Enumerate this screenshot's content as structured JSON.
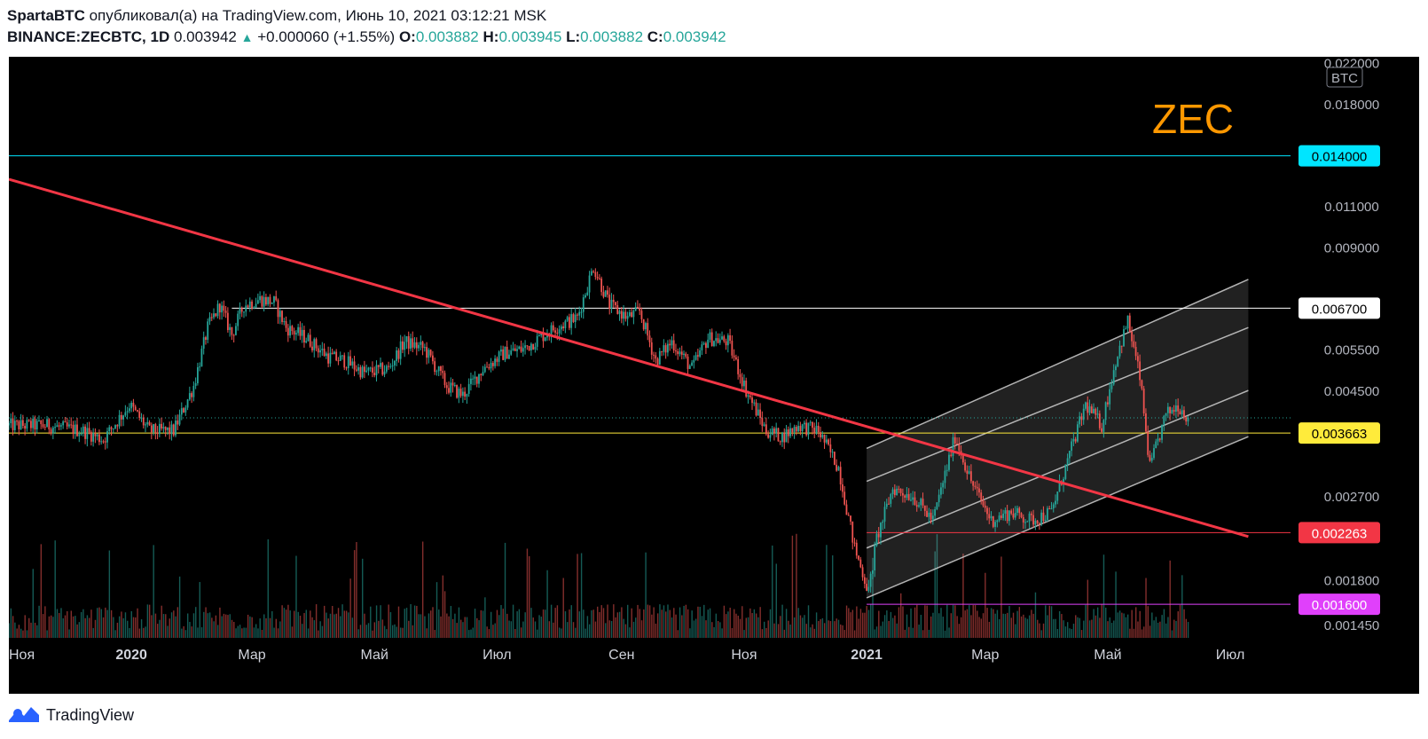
{
  "header": {
    "author": "SpartaBTC",
    "published_text": "опубликовал(а) на TradingView.com, Июнь 10, 2021 03:12:21 MSK",
    "symbol": "BINANCE:ZECBTC, 1D",
    "price": "0.003942",
    "change": "+0.000060 (+1.55%)",
    "o_label": "O:",
    "o_value": "0.003882",
    "h_label": "H:",
    "h_value": "0.003945",
    "l_label": "L:",
    "l_value": "0.003882",
    "c_label": "C:",
    "c_value": "0.003942"
  },
  "watermark": "ZEC",
  "currency": "BTC",
  "footer": {
    "brand": "TradingView"
  },
  "colors": {
    "candle_up": "#26a69a",
    "candle_down": "#ef5350",
    "trendline": "#f23645",
    "level_cyan": "#00e5ff",
    "level_yellow": "#ffeb3b",
    "level_magenta": "#e040fb",
    "watermark": "#ff9800"
  },
  "chart_data": {
    "type": "candlestick",
    "y_axis": {
      "scale": "log",
      "ylim": [
        0.00136,
        0.0226
      ],
      "ticks": [
        "0.022000",
        "0.018000",
        "0.011000",
        "0.009000",
        "0.005500",
        "0.004500",
        "0.002700",
        "0.001800",
        "0.001450"
      ]
    },
    "x_axis": {
      "range": [
        "2019-11-01",
        "2021-07-31"
      ],
      "ticks": [
        {
          "label": "Ноя",
          "date": "2019-11-01"
        },
        {
          "label": "2020",
          "date": "2020-01-01"
        },
        {
          "label": "Мар",
          "date": "2020-03-01"
        },
        {
          "label": "Май",
          "date": "2020-05-01"
        },
        {
          "label": "Июл",
          "date": "2020-07-01"
        },
        {
          "label": "Сен",
          "date": "2020-09-01"
        },
        {
          "label": "Ноя",
          "date": "2020-11-01"
        },
        {
          "label": "2021",
          "date": "2021-01-01"
        },
        {
          "label": "Мар",
          "date": "2021-03-01"
        },
        {
          "label": "Май",
          "date": "2021-05-01"
        },
        {
          "label": "Июл",
          "date": "2021-07-01"
        }
      ]
    },
    "price_path": [
      {
        "date": "2019-11-01",
        "close": 0.0038
      },
      {
        "date": "2019-11-20",
        "close": 0.0038
      },
      {
        "date": "2019-12-08",
        "close": 0.0037
      },
      {
        "date": "2019-12-18",
        "close": 0.00355
      },
      {
        "date": "2019-12-31",
        "close": 0.0042
      },
      {
        "date": "2020-01-10",
        "close": 0.0037
      },
      {
        "date": "2020-01-22",
        "close": 0.0037
      },
      {
        "date": "2020-02-01",
        "close": 0.0046
      },
      {
        "date": "2020-02-08",
        "close": 0.0061
      },
      {
        "date": "2020-02-14",
        "close": 0.0068
      },
      {
        "date": "2020-02-20",
        "close": 0.0059
      },
      {
        "date": "2020-02-26",
        "close": 0.0068
      },
      {
        "date": "2020-03-05",
        "close": 0.007
      },
      {
        "date": "2020-03-12",
        "close": 0.0069
      },
      {
        "date": "2020-03-18",
        "close": 0.0061
      },
      {
        "date": "2020-03-28",
        "close": 0.0058
      },
      {
        "date": "2020-04-08",
        "close": 0.0053
      },
      {
        "date": "2020-04-16",
        "close": 0.0052
      },
      {
        "date": "2020-04-26",
        "close": 0.0049
      },
      {
        "date": "2020-05-08",
        "close": 0.005
      },
      {
        "date": "2020-05-16",
        "close": 0.0057
      },
      {
        "date": "2020-05-26",
        "close": 0.0055
      },
      {
        "date": "2020-06-06",
        "close": 0.0046
      },
      {
        "date": "2020-06-14",
        "close": 0.0044
      },
      {
        "date": "2020-06-24",
        "close": 0.005
      },
      {
        "date": "2020-07-05",
        "close": 0.0054
      },
      {
        "date": "2020-07-14",
        "close": 0.0055
      },
      {
        "date": "2020-07-22",
        "close": 0.0058
      },
      {
        "date": "2020-07-30",
        "close": 0.0061
      },
      {
        "date": "2020-08-10",
        "close": 0.0064
      },
      {
        "date": "2020-08-18",
        "close": 0.0082
      },
      {
        "date": "2020-08-26",
        "close": 0.0068
      },
      {
        "date": "2020-09-04",
        "close": 0.0064
      },
      {
        "date": "2020-09-10",
        "close": 0.0066
      },
      {
        "date": "2020-09-18",
        "close": 0.0052
      },
      {
        "date": "2020-09-26",
        "close": 0.0057
      },
      {
        "date": "2020-10-06",
        "close": 0.005
      },
      {
        "date": "2020-10-14",
        "close": 0.0058
      },
      {
        "date": "2020-10-24",
        "close": 0.0057
      },
      {
        "date": "2020-11-02",
        "close": 0.0045
      },
      {
        "date": "2020-11-12",
        "close": 0.0037
      },
      {
        "date": "2020-11-20",
        "close": 0.0036
      },
      {
        "date": "2020-11-28",
        "close": 0.0038
      },
      {
        "date": "2020-12-08",
        "close": 0.0037
      },
      {
        "date": "2020-12-18",
        "close": 0.0031
      },
      {
        "date": "2020-12-26",
        "close": 0.0021
      },
      {
        "date": "2021-01-02",
        "close": 0.0017
      },
      {
        "date": "2021-01-06",
        "close": 0.0022
      },
      {
        "date": "2021-01-14",
        "close": 0.0028
      },
      {
        "date": "2021-01-24",
        "close": 0.0027
      },
      {
        "date": "2021-02-03",
        "close": 0.0024
      },
      {
        "date": "2021-02-14",
        "close": 0.0036
      },
      {
        "date": "2021-02-22",
        "close": 0.0029
      },
      {
        "date": "2021-03-04",
        "close": 0.0024
      },
      {
        "date": "2021-03-14",
        "close": 0.0025
      },
      {
        "date": "2021-03-24",
        "close": 0.0024
      },
      {
        "date": "2021-04-03",
        "close": 0.0025
      },
      {
        "date": "2021-04-12",
        "close": 0.0033
      },
      {
        "date": "2021-04-20",
        "close": 0.0042
      },
      {
        "date": "2021-04-28",
        "close": 0.0038
      },
      {
        "date": "2021-05-05",
        "close": 0.0052
      },
      {
        "date": "2021-05-11",
        "close": 0.0063
      },
      {
        "date": "2021-05-17",
        "close": 0.0048
      },
      {
        "date": "2021-05-22",
        "close": 0.0031
      },
      {
        "date": "2021-05-30",
        "close": 0.004
      },
      {
        "date": "2021-06-05",
        "close": 0.0042
      },
      {
        "date": "2021-06-10",
        "close": 0.003942
      }
    ],
    "price_levels": [
      {
        "label": "0.014000",
        "value": 0.014,
        "color": "#00e5ff",
        "label_text_color": "#000000"
      },
      {
        "label": "0.006700",
        "value": 0.0067,
        "color": "#ffffff",
        "label_text_color": "#000000"
      },
      {
        "label": "0.003663",
        "value": 0.003663,
        "color": "#ffeb3b",
        "label_text_color": "#000000"
      },
      {
        "label": "0.002263",
        "value": 0.002263,
        "color": "#f23645",
        "label_text_color": "#ffffff"
      },
      {
        "label": "0.001600",
        "value": 0.0016,
        "color": "#e040fb",
        "label_text_color": "#ffffff"
      }
    ],
    "trendline": {
      "start": {
        "date": "2019-11-01",
        "value": 0.0125
      },
      "end": {
        "date": "2021-07-10",
        "value": 0.00222
      }
    },
    "channel": {
      "start_date": "2021-01-01",
      "end_date": "2021-07-10",
      "lines_start": [
        0.0034,
        0.0029,
        0.0021,
        0.00165
      ],
      "lines_end": [
        0.0077,
        0.0061,
        0.0045,
        0.0036
      ]
    },
    "last_price": 0.003942
  }
}
